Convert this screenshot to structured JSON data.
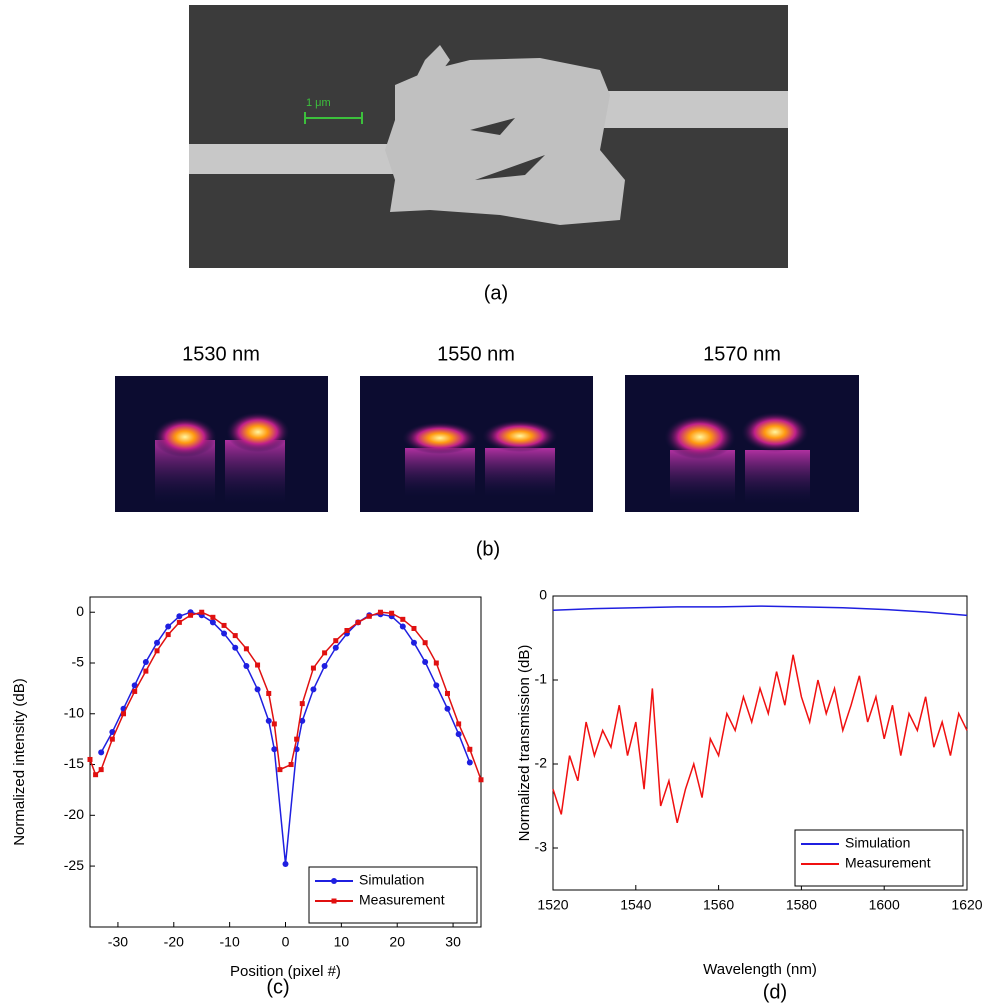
{
  "figure": {
    "panel_labels": [
      "(a)",
      "(b)",
      "(c)",
      "(d)"
    ],
    "scale_bar": "1 μm",
    "wavelength_labels": [
      "1530 nm",
      "1550 nm",
      "1570 nm"
    ]
  },
  "chart_data": [
    {
      "type": "line",
      "xlabel": "Position (pixel #)",
      "ylabel": "Normalized intensity (dB)",
      "xlim": [
        -35,
        35
      ],
      "xticks": [
        -30,
        -20,
        -10,
        0,
        10,
        20,
        30
      ],
      "ylim": [
        -31,
        1.5
      ],
      "yticks": [
        0,
        -5,
        -10,
        -15,
        -20,
        -25
      ],
      "legend": "lower right",
      "series": [
        {
          "name": "Simulation",
          "color": "#1f1fe0",
          "marker": "circle",
          "x": [
            -33,
            -31,
            -29,
            -27,
            -25,
            -23,
            -21,
            -19,
            -17,
            -15,
            -13,
            -11,
            -9,
            -7,
            -5,
            -3,
            -2,
            0,
            2,
            3,
            5,
            7,
            9,
            11,
            13,
            15,
            17,
            19,
            21,
            23,
            25,
            27,
            29,
            31,
            33
          ],
          "values": [
            -13.8,
            -11.8,
            -9.5,
            -7.2,
            -4.9,
            -3,
            -1.4,
            -0.4,
            0,
            -0.3,
            -1,
            -2.1,
            -3.5,
            -5.3,
            -7.6,
            -10.7,
            -13.5,
            -24.8,
            -13.5,
            -10.7,
            -7.6,
            -5.3,
            -3.5,
            -2.1,
            -1,
            -0.3,
            -0.2,
            -0.4,
            -1.4,
            -3,
            -4.9,
            -7.2,
            -9.5,
            -12,
            -14.8
          ]
        },
        {
          "name": "Measurement",
          "color": "#e01010",
          "marker": "square",
          "x": [
            -35,
            -34,
            -33,
            -31,
            -29,
            -27,
            -25,
            -23,
            -21,
            -19,
            -17,
            -15,
            -13,
            -11,
            -9,
            -7,
            -5,
            -3,
            -2,
            -1,
            1,
            2,
            3,
            5,
            7,
            9,
            11,
            13,
            15,
            17,
            19,
            21,
            23,
            25,
            27,
            29,
            31,
            33,
            35
          ],
          "values": [
            -14.5,
            -16,
            -15.5,
            -12.5,
            -10,
            -7.8,
            -5.8,
            -3.8,
            -2.2,
            -1,
            -0.3,
            0,
            -0.5,
            -1.3,
            -2.3,
            -3.6,
            -5.2,
            -8,
            -11,
            -15.5,
            -15,
            -12.5,
            -9,
            -5.5,
            -4,
            -2.8,
            -1.8,
            -1,
            -0.4,
            0,
            -0.1,
            -0.7,
            -1.6,
            -3,
            -5,
            -8,
            -11,
            -13.5,
            -16.5
          ]
        }
      ]
    },
    {
      "type": "line",
      "xlabel": "Wavelength (nm)",
      "ylabel": "Normalized transmission (dB)",
      "xlim": [
        1520,
        1620
      ],
      "xticks": [
        1520,
        1540,
        1560,
        1580,
        1600,
        1620
      ],
      "ylim": [
        -3.5,
        0
      ],
      "yticks": [
        0,
        -1,
        -2,
        -3
      ],
      "legend": "lower right",
      "series": [
        {
          "name": "Simulation",
          "color": "#1f1fe0",
          "x": [
            1520,
            1530,
            1540,
            1550,
            1560,
            1570,
            1580,
            1590,
            1600,
            1610,
            1620
          ],
          "values": [
            -0.17,
            -0.15,
            -0.14,
            -0.13,
            -0.13,
            -0.12,
            -0.13,
            -0.14,
            -0.16,
            -0.19,
            -0.23
          ]
        },
        {
          "name": "Measurement",
          "color": "#f01010",
          "x": [
            1520,
            1522,
            1524,
            1526,
            1528,
            1530,
            1532,
            1534,
            1536,
            1538,
            1540,
            1542,
            1544,
            1546,
            1548,
            1550,
            1552,
            1554,
            1556,
            1558,
            1560,
            1562,
            1564,
            1566,
            1568,
            1570,
            1572,
            1574,
            1576,
            1578,
            1580,
            1582,
            1584,
            1586,
            1588,
            1590,
            1592,
            1594,
            1596,
            1598,
            1600,
            1602,
            1604,
            1606,
            1608,
            1610,
            1612,
            1614,
            1616,
            1618,
            1620
          ],
          "values": [
            -2.3,
            -2.6,
            -1.9,
            -2.2,
            -1.5,
            -1.9,
            -1.6,
            -1.8,
            -1.3,
            -1.9,
            -1.5,
            -2.3,
            -1.1,
            -2.5,
            -2.2,
            -2.7,
            -2.3,
            -2,
            -2.4,
            -1.7,
            -1.9,
            -1.4,
            -1.6,
            -1.2,
            -1.5,
            -1.1,
            -1.4,
            -0.9,
            -1.3,
            -0.7,
            -1.2,
            -1.5,
            -1,
            -1.4,
            -1.1,
            -1.6,
            -1.3,
            -0.95,
            -1.5,
            -1.2,
            -1.7,
            -1.3,
            -1.9,
            -1.4,
            -1.6,
            -1.2,
            -1.8,
            -1.5,
            -1.9,
            -1.4,
            -1.6
          ]
        }
      ]
    }
  ]
}
